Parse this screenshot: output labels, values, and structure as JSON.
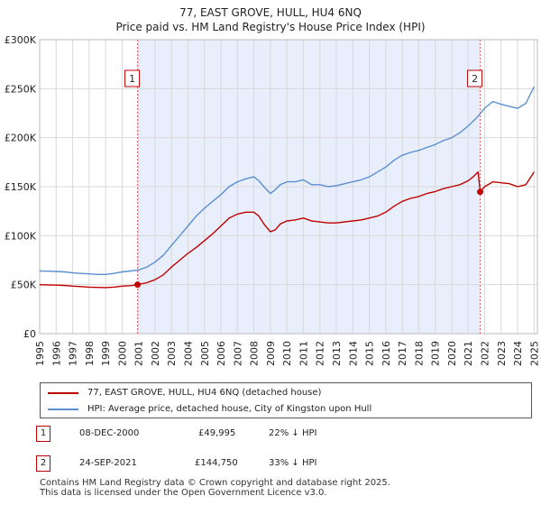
{
  "title": {
    "line1": "77, EAST GROVE, HULL, HU4 6NQ",
    "line2": "Price paid vs. HM Land Registry's House Price Index (HPI)"
  },
  "colors": {
    "price_line": "#c00000",
    "hpi_line": "#5b8fd0",
    "shade": "#e8eefb",
    "grid": "#d8d8d8",
    "marker_border": "#c00000",
    "vline": "#e06060"
  },
  "legend": {
    "price_label": "77, EAST GROVE, HULL, HU4 6NQ (detached house)",
    "hpi_label": "HPI: Average price, detached house, City of Kingston upon Hull"
  },
  "transactions": [
    {
      "id": "1",
      "date": "08-DEC-2000",
      "price": "£49,995",
      "hpi": "22% ↓ HPI"
    },
    {
      "id": "2",
      "date": "24-SEP-2021",
      "price": "£144,750",
      "hpi": "33% ↓ HPI"
    }
  ],
  "footer": {
    "line1": "Contains HM Land Registry data © Crown copyright and database right 2025.",
    "line2": "This data is licensed under the Open Government Licence v3.0."
  },
  "chart_data": {
    "type": "line",
    "title": "77, EAST GROVE, HULL, HU4 6NQ — Price paid vs. HM Land Registry's House Price Index (HPI)",
    "xlabel": "",
    "ylabel": "",
    "xlim": [
      1995,
      2025.2
    ],
    "ylim": [
      0,
      300000
    ],
    "grid": true,
    "x_ticks": [
      1995,
      1996,
      1997,
      1998,
      1999,
      2000,
      2001,
      2002,
      2003,
      2004,
      2005,
      2006,
      2007,
      2008,
      2009,
      2010,
      2011,
      2012,
      2013,
      2014,
      2015,
      2016,
      2017,
      2018,
      2019,
      2020,
      2021,
      2022,
      2023,
      2024,
      2025
    ],
    "y_ticks": [
      {
        "value": 0,
        "label": "£0"
      },
      {
        "value": 50000,
        "label": "£50K"
      },
      {
        "value": 100000,
        "label": "£100K"
      },
      {
        "value": 150000,
        "label": "£150K"
      },
      {
        "value": 200000,
        "label": "£200K"
      },
      {
        "value": 250000,
        "label": "£250K"
      },
      {
        "value": 300000,
        "label": "£300K"
      }
    ],
    "shaded_range": [
      2000.94,
      2021.73
    ],
    "markers": [
      {
        "label": "1",
        "x": 2000.94,
        "y": 49995
      },
      {
        "label": "2",
        "x": 2021.73,
        "y": 144750
      }
    ],
    "series": [
      {
        "name": "77, EAST GROVE, HULL, HU4 6NQ (detached house)",
        "color": "#c00000",
        "x": [
          1995,
          1995.5,
          1996,
          1996.5,
          1997,
          1997.5,
          1998,
          1998.5,
          1999,
          1999.5,
          2000,
          2000.5,
          2000.94,
          2001.5,
          2002,
          2002.5,
          2003,
          2003.5,
          2004,
          2004.5,
          2005,
          2005.5,
          2006,
          2006.5,
          2007,
          2007.5,
          2008,
          2008.3,
          2008.6,
          2009,
          2009.3,
          2009.6,
          2010,
          2010.5,
          2011,
          2011.5,
          2012,
          2012.5,
          2013,
          2013.5,
          2014,
          2014.5,
          2015,
          2015.5,
          2016,
          2016.5,
          2017,
          2017.5,
          2018,
          2018.5,
          2019,
          2019.5,
          2020,
          2020.5,
          2021,
          2021.3,
          2021.6,
          2021.73,
          2022,
          2022.5,
          2023,
          2023.5,
          2024,
          2024.5,
          2025
        ],
        "y": [
          50000,
          49800,
          49500,
          49200,
          48500,
          48000,
          47500,
          47200,
          47000,
          47500,
          48500,
          49000,
          49995,
          52000,
          55000,
          60000,
          68000,
          75000,
          82000,
          88000,
          95000,
          102000,
          110000,
          118000,
          122000,
          124000,
          124000,
          120000,
          112000,
          104000,
          106000,
          112000,
          115000,
          116000,
          118000,
          115000,
          114000,
          113000,
          113000,
          114000,
          115000,
          116000,
          118000,
          120000,
          124000,
          130000,
          135000,
          138000,
          140000,
          143000,
          145000,
          148000,
          150000,
          152000,
          156000,
          160000,
          165000,
          144750,
          150000,
          155000,
          154000,
          153000,
          150000,
          152000,
          165000
        ]
      },
      {
        "name": "HPI: Average price, detached house, City of Kingston upon Hull",
        "color": "#5b8fd0",
        "x": [
          1995,
          1995.5,
          1996,
          1996.5,
          1997,
          1997.5,
          1998,
          1998.5,
          1999,
          1999.5,
          2000,
          2000.5,
          2001,
          2001.5,
          2002,
          2002.5,
          2003,
          2003.5,
          2004,
          2004.5,
          2005,
          2005.5,
          2006,
          2006.5,
          2007,
          2007.5,
          2008,
          2008.3,
          2008.6,
          2009,
          2009.3,
          2009.6,
          2010,
          2010.5,
          2011,
          2011.5,
          2012,
          2012.5,
          2013,
          2013.5,
          2014,
          2014.5,
          2015,
          2015.5,
          2016,
          2016.5,
          2017,
          2017.5,
          2018,
          2018.5,
          2019,
          2019.5,
          2020,
          2020.5,
          2021,
          2021.5,
          2022,
          2022.5,
          2023,
          2023.5,
          2024,
          2024.5,
          2025
        ],
        "y": [
          64000,
          63800,
          63500,
          63000,
          62000,
          61500,
          61000,
          60500,
          60500,
          61500,
          63000,
          64000,
          65000,
          68000,
          73000,
          80000,
          90000,
          100000,
          110000,
          120000,
          128000,
          135000,
          142000,
          150000,
          155000,
          158000,
          160000,
          156000,
          150000,
          143000,
          147000,
          152000,
          155000,
          155000,
          157000,
          152000,
          152000,
          150000,
          151000,
          153000,
          155000,
          157000,
          160000,
          165000,
          170000,
          177000,
          182000,
          185000,
          187000,
          190000,
          193000,
          197000,
          200000,
          205000,
          212000,
          220000,
          230000,
          237000,
          234000,
          232000,
          230000,
          235000,
          252000
        ]
      }
    ]
  }
}
